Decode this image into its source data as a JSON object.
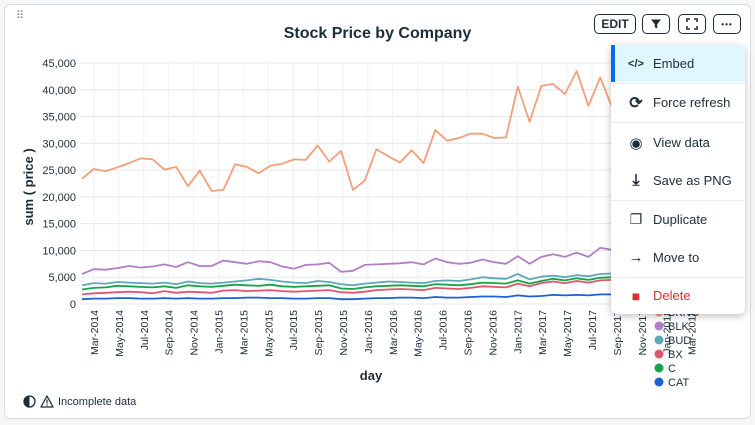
{
  "chart_data": {
    "type": "line",
    "title": "Stock Price by Company",
    "xlabel": "day",
    "ylabel": "sum ( price )",
    "ylim": [
      0,
      45000
    ],
    "yticks": [
      "0",
      "5,000",
      "10,000",
      "15,000",
      "20,000",
      "25,000",
      "30,000",
      "35,000",
      "40,000",
      "45,000"
    ],
    "xticks": [
      "Mar-2014",
      "May-2014",
      "Jul-2014",
      "Sep-2014",
      "Nov-2014",
      "Jan-2015",
      "Mar-2015",
      "May-2015",
      "Jul-2015",
      "Sep-2015",
      "Nov-2015",
      "Jan-2016",
      "Mar-2016",
      "May-2016",
      "Jul-2016",
      "Sep-2016",
      "Nov-2016",
      "Jan-2017",
      "Mar-2017",
      "May-2017",
      "Jul-2017",
      "Sep-2017",
      "Nov-2017",
      "Jan-2018",
      "Mar-2018"
    ],
    "grid": true,
    "legend_position": "right",
    "legend": [
      {
        "name": "BKNG",
        "color": "#f0a07a"
      },
      {
        "name": "BLK",
        "color": "#b07fc7"
      },
      {
        "name": "BUD",
        "color": "#5fa8b8"
      },
      {
        "name": "BX",
        "color": "#e0566f"
      },
      {
        "name": "C",
        "color": "#16a34a"
      },
      {
        "name": "CAT",
        "color": "#1f5fd6"
      }
    ],
    "series": [
      {
        "name": "BKNG",
        "color": "#f0a07a",
        "values": [
          23400,
          25200,
          24800,
          25500,
          26300,
          27200,
          27000,
          25100,
          25600,
          22000,
          24900,
          21100,
          21300,
          26100,
          25600,
          24400,
          25800,
          26200,
          27000,
          26900,
          29600,
          26600,
          28600,
          21300,
          23000,
          28900,
          27600,
          26400,
          28700,
          26300,
          32500,
          30500,
          31000,
          31800,
          31800,
          31000,
          31100,
          40600,
          34000,
          40700,
          41100,
          39200,
          43500,
          37000,
          42300,
          36800
        ]
      },
      {
        "name": "BLK",
        "color": "#b07fc7",
        "values": [
          5600,
          6500,
          6400,
          6700,
          7100,
          6800,
          7000,
          7400,
          6900,
          7800,
          7100,
          7100,
          8100,
          7800,
          7500,
          8000,
          7800,
          7000,
          6600,
          7300,
          7400,
          7700,
          6000,
          6200,
          7300,
          7400,
          7500,
          7600,
          7800,
          7400,
          8500,
          7800,
          7500,
          7700,
          8300,
          7800,
          7500,
          8900,
          7500,
          8800,
          9300,
          8800,
          9600,
          8800,
          10500,
          10100
        ]
      },
      {
        "name": "BUD",
        "color": "#5fa8b8",
        "values": [
          3500,
          3900,
          3800,
          4100,
          4000,
          3900,
          3800,
          4000,
          3700,
          4200,
          3900,
          3800,
          4000,
          4200,
          4400,
          4700,
          4500,
          4200,
          4000,
          3900,
          4300,
          4100,
          3700,
          3500,
          3800,
          4000,
          4200,
          4100,
          4000,
          3900,
          4300,
          4400,
          4300,
          4600,
          5000,
          4800,
          4700,
          5600,
          4600,
          5100,
          5300,
          5000,
          5400,
          5200,
          5600,
          5700
        ]
      },
      {
        "name": "BX",
        "color": "#e0566f",
        "values": [
          1800,
          2000,
          2100,
          2200,
          2300,
          2200,
          2000,
          2400,
          2100,
          2300,
          2200,
          2100,
          2500,
          2600,
          2400,
          2500,
          2600,
          2400,
          2300,
          2400,
          2500,
          2600,
          2200,
          2100,
          2300,
          2600,
          2700,
          2800,
          2700,
          2600,
          3000,
          2900,
          2800,
          3000,
          3300,
          3200,
          3100,
          3800,
          3300,
          3900,
          4200,
          3900,
          4300,
          4000,
          4400,
          4500
        ]
      },
      {
        "name": "C",
        "color": "#16a34a",
        "values": [
          2700,
          3000,
          3100,
          3400,
          3300,
          3200,
          3100,
          3300,
          3000,
          3500,
          3300,
          3200,
          3400,
          3600,
          3500,
          3400,
          3600,
          3300,
          3200,
          3300,
          3400,
          3500,
          2900,
          2800,
          3100,
          3300,
          3400,
          3500,
          3400,
          3300,
          3700,
          3600,
          3500,
          3700,
          4000,
          3900,
          3800,
          4400,
          3800,
          4300,
          4700,
          4400,
          4800,
          4500,
          4900,
          5000
        ]
      },
      {
        "name": "CAT",
        "color": "#1f5fd6",
        "values": [
          900,
          1000,
          1000,
          1100,
          1100,
          1000,
          1000,
          1100,
          1000,
          1100,
          1000,
          1000,
          1100,
          1100,
          1200,
          1200,
          1100,
          1100,
          1000,
          1000,
          1100,
          1100,
          900,
          900,
          1000,
          1100,
          1100,
          1200,
          1200,
          1100,
          1300,
          1200,
          1200,
          1300,
          1400,
          1400,
          1300,
          1600,
          1400,
          1500,
          1700,
          1600,
          1700,
          1600,
          1800,
          1800
        ]
      }
    ]
  },
  "toolbar": {
    "edit_label": "EDIT",
    "filter_icon": "filter-icon",
    "expand_icon": "expand-icon",
    "more_label": "•••"
  },
  "menu": {
    "items": [
      {
        "label": "Embed",
        "icon": "</>"
      },
      {
        "label": "Force refresh",
        "icon": "⟳"
      },
      {
        "label": "View data",
        "icon": "◉"
      },
      {
        "label": "Save as PNG",
        "icon": "⤓"
      },
      {
        "label": "Duplicate",
        "icon": "❐"
      },
      {
        "label": "Move to",
        "icon": "→"
      },
      {
        "label": "Delete",
        "icon": "■"
      }
    ],
    "accent_color": "#016bf8",
    "delete_color": "#db3030"
  },
  "footer": {
    "warning_text": "Incomplete data"
  }
}
